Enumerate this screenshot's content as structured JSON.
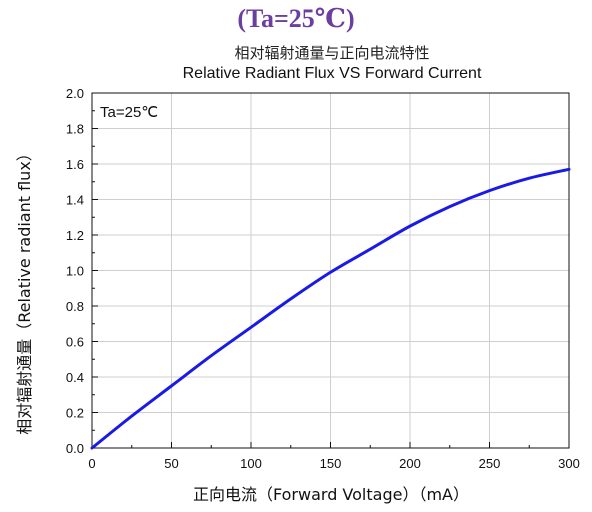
{
  "heading": "(Ta=25℃)",
  "chart_data": {
    "type": "line",
    "title_zh": "相对辐射通量与正向电流特性",
    "title": "Relative Radiant Flux VS Forward Current",
    "xlabel": "正向电流（Forward Voltage）（mA）",
    "ylabel": "相对辐射通量（Relative radiant flux）",
    "annotation": "Ta=25℃",
    "xlim": [
      0,
      300
    ],
    "ylim": [
      0,
      2.0
    ],
    "x_ticks": [
      0,
      50,
      100,
      150,
      200,
      250,
      300
    ],
    "y_ticks": [
      0.0,
      0.2,
      0.4,
      0.6,
      0.8,
      1.0,
      1.2,
      1.4,
      1.6,
      1.8,
      2.0
    ],
    "grid": true,
    "line_color": "#1a1ae6",
    "series": [
      {
        "x": [
          0,
          25,
          50,
          75,
          100,
          125,
          150,
          175,
          200,
          225,
          250,
          275,
          300
        ],
        "values": [
          0.0,
          0.18,
          0.35,
          0.52,
          0.68,
          0.84,
          0.99,
          1.12,
          1.25,
          1.36,
          1.45,
          1.52,
          1.57
        ]
      }
    ]
  }
}
